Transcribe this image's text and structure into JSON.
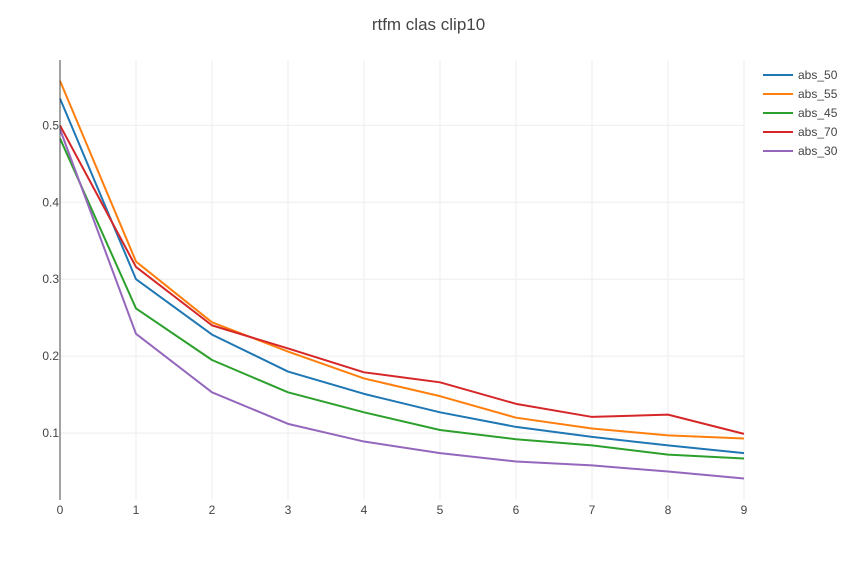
{
  "chart_data": {
    "type": "line",
    "title": "rtfm clas clip10",
    "xlabel": "",
    "ylabel": "",
    "x": [
      0,
      1,
      2,
      3,
      4,
      5,
      6,
      7,
      8,
      9
    ],
    "xlim": [
      0,
      9
    ],
    "ylim": [
      0.013,
      0.585
    ],
    "xticks": [
      0,
      1,
      2,
      3,
      4,
      5,
      6,
      7,
      8,
      9
    ],
    "yticks": [
      0.1,
      0.2,
      0.3,
      0.4,
      0.5
    ],
    "grid": true,
    "legend_position": "top-right",
    "series": [
      {
        "name": "abs_50",
        "color": "#1f77b4",
        "values": [
          0.535,
          0.3,
          0.228,
          0.18,
          0.151,
          0.127,
          0.108,
          0.095,
          0.084,
          0.074
        ]
      },
      {
        "name": "abs_55",
        "color": "#ff7f0e",
        "values": [
          0.558,
          0.323,
          0.244,
          0.206,
          0.171,
          0.148,
          0.12,
          0.106,
          0.097,
          0.093
        ]
      },
      {
        "name": "abs_45",
        "color": "#2ca02c",
        "values": [
          0.483,
          0.262,
          0.195,
          0.153,
          0.127,
          0.104,
          0.092,
          0.084,
          0.072,
          0.067
        ]
      },
      {
        "name": "abs_70",
        "color": "#d62728",
        "values": [
          0.5,
          0.316,
          0.24,
          0.21,
          0.179,
          0.166,
          0.138,
          0.121,
          0.124,
          0.099
        ]
      },
      {
        "name": "abs_30",
        "color": "#9467bd",
        "values": [
          0.495,
          0.229,
          0.153,
          0.112,
          0.089,
          0.074,
          0.063,
          0.058,
          0.05,
          0.041
        ]
      }
    ]
  }
}
